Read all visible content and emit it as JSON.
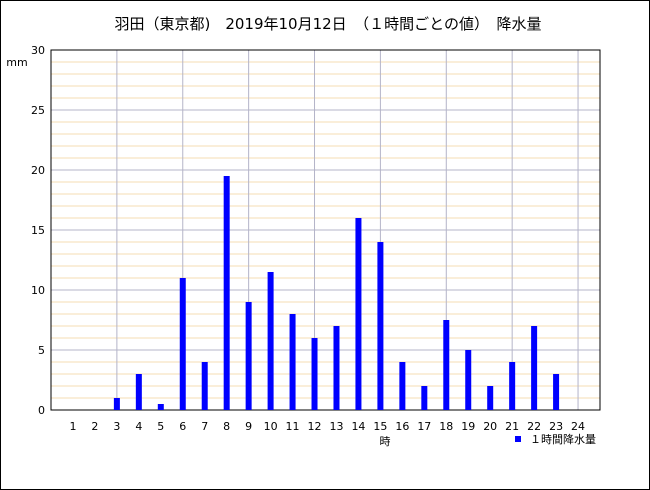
{
  "chart_data": {
    "type": "bar",
    "title": "羽田（東京都)　2019年10月12日　（１時間ごとの値）　降水量",
    "ylabel": "mm",
    "xlabel": "時",
    "ylim": [
      0,
      30
    ],
    "y_ticks": [
      "0",
      "5",
      "10",
      "15",
      "20",
      "25",
      "30"
    ],
    "categories": [
      "1",
      "2",
      "3",
      "4",
      "5",
      "6",
      "7",
      "8",
      "9",
      "10",
      "11",
      "12",
      "13",
      "14",
      "15",
      "16",
      "17",
      "18",
      "19",
      "20",
      "21",
      "22",
      "23",
      "24"
    ],
    "series": [
      {
        "name": "１時間降水量",
        "color": "#0000ff",
        "values": [
          0,
          0,
          1,
          3,
          0.5,
          11,
          4,
          19.5,
          9,
          11.5,
          8,
          6,
          7,
          16,
          14,
          4,
          2,
          7.5,
          5,
          2,
          4,
          7,
          3,
          0
        ]
      }
    ],
    "grid": true,
    "legend_position": "bottom-right",
    "colors": {
      "major_grid": "#b4b4c8",
      "minor_grid": "#f5deb3",
      "bar": "#0000ff"
    }
  }
}
